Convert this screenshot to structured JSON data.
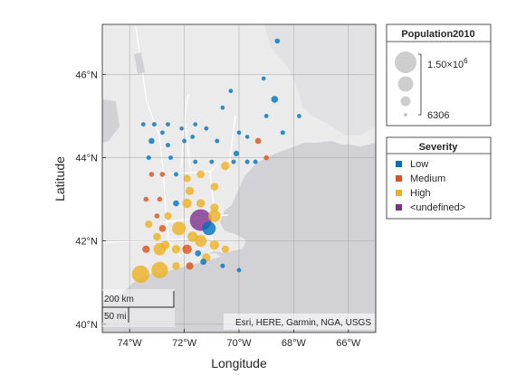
{
  "chart_data": {
    "type": "scatter",
    "subtype": "geographic bubble chart",
    "xlabel": "Longitude",
    "ylabel": "Latitude",
    "xlim": [
      -75,
      -65
    ],
    "ylim": [
      39.8,
      47.2
    ],
    "xticks": [
      -74,
      -72,
      -70,
      -68,
      -66
    ],
    "xtick_labels": [
      "74°W",
      "72°W",
      "70°W",
      "68°W",
      "66°W"
    ],
    "yticks": [
      40,
      42,
      44,
      46
    ],
    "ytick_labels": [
      "40°N",
      "42°N",
      "44°N",
      "46°N"
    ],
    "grid": true,
    "basemap_attribution": "Esri, HERE, Garmin, NGA, USGS",
    "scalebar": {
      "km_label": "200 km",
      "mi_label": "50 mi"
    },
    "size_legend": {
      "title": "Population2010",
      "max_label": "1.50×10",
      "max_label_exponent": "6",
      "min_label": "6306",
      "max_value": 1500000,
      "min_value": 6306
    },
    "color_legend": {
      "title": "Severity",
      "placement": "right",
      "categories": [
        {
          "name": "Low",
          "color": "#0072BD"
        },
        {
          "name": "Medium",
          "color": "#D95319"
        },
        {
          "name": "High",
          "color": "#EDB120"
        },
        {
          "name": "<undefined>",
          "color": "#7E2F8E"
        }
      ]
    },
    "points": [
      {
        "lon": -68.6,
        "lat": 46.8,
        "severity": "Low",
        "pop": 30000
      },
      {
        "lon": -69.1,
        "lat": 45.9,
        "severity": "Low",
        "pop": 12000
      },
      {
        "lon": -68.7,
        "lat": 45.4,
        "severity": "Low",
        "pop": 80000
      },
      {
        "lon": -70.3,
        "lat": 45.6,
        "severity": "Low",
        "pop": 15000
      },
      {
        "lon": -69.0,
        "lat": 45.0,
        "severity": "Low",
        "pop": 15000
      },
      {
        "lon": -67.8,
        "lat": 45.0,
        "severity": "Low",
        "pop": 15000
      },
      {
        "lon": -70.6,
        "lat": 45.2,
        "severity": "Low",
        "pop": 12000
      },
      {
        "lon": -68.4,
        "lat": 44.6,
        "severity": "Low",
        "pop": 20000
      },
      {
        "lon": -69.7,
        "lat": 44.5,
        "severity": "Low",
        "pop": 12000
      },
      {
        "lon": -70.0,
        "lat": 44.6,
        "severity": "Low",
        "pop": 15000
      },
      {
        "lon": -69.3,
        "lat": 44.4,
        "severity": "Medium",
        "pop": 60000
      },
      {
        "lon": -73.5,
        "lat": 44.8,
        "severity": "Low",
        "pop": 15000
      },
      {
        "lon": -73.1,
        "lat": 44.8,
        "severity": "Low",
        "pop": 20000
      },
      {
        "lon": -72.6,
        "lat": 44.8,
        "severity": "Low",
        "pop": 15000
      },
      {
        "lon": -72.1,
        "lat": 44.7,
        "severity": "Low",
        "pop": 12000
      },
      {
        "lon": -71.6,
        "lat": 44.8,
        "severity": "Low",
        "pop": 12000
      },
      {
        "lon": -71.2,
        "lat": 44.7,
        "severity": "Low",
        "pop": 15000
      },
      {
        "lon": -72.8,
        "lat": 44.6,
        "severity": "Low",
        "pop": 15000
      },
      {
        "lon": -71.7,
        "lat": 44.5,
        "severity": "Low",
        "pop": 15000
      },
      {
        "lon": -73.2,
        "lat": 44.4,
        "severity": "Low",
        "pop": 50000
      },
      {
        "lon": -72.6,
        "lat": 44.3,
        "severity": "Low",
        "pop": 20000
      },
      {
        "lon": -70.8,
        "lat": 44.4,
        "severity": "Low",
        "pop": 20000
      },
      {
        "lon": -72.0,
        "lat": 44.4,
        "severity": "Low",
        "pop": 15000
      },
      {
        "lon": -70.1,
        "lat": 44.1,
        "severity": "Low",
        "pop": 40000
      },
      {
        "lon": -73.3,
        "lat": 44.0,
        "severity": "Low",
        "pop": 20000
      },
      {
        "lon": -72.5,
        "lat": 44.0,
        "severity": "Low",
        "pop": 15000
      },
      {
        "lon": -71.6,
        "lat": 43.9,
        "severity": "Low",
        "pop": 15000
      },
      {
        "lon": -71.0,
        "lat": 43.9,
        "severity": "Low",
        "pop": 15000
      },
      {
        "lon": -69.7,
        "lat": 43.9,
        "severity": "Low",
        "pop": 20000
      },
      {
        "lon": -69.4,
        "lat": 43.9,
        "severity": "Low",
        "pop": 20000
      },
      {
        "lon": -69.0,
        "lat": 44.0,
        "severity": "Medium",
        "pop": 30000
      },
      {
        "lon": -73.2,
        "lat": 43.6,
        "severity": "Medium",
        "pop": 30000
      },
      {
        "lon": -72.8,
        "lat": 43.6,
        "severity": "Medium",
        "pop": 30000
      },
      {
        "lon": -72.3,
        "lat": 43.6,
        "severity": "Low",
        "pop": 20000
      },
      {
        "lon": -71.9,
        "lat": 43.5,
        "severity": "High",
        "pop": 100000
      },
      {
        "lon": -71.4,
        "lat": 43.6,
        "severity": "High",
        "pop": 120000
      },
      {
        "lon": -70.5,
        "lat": 43.8,
        "severity": "High",
        "pop": 150000
      },
      {
        "lon": -70.2,
        "lat": 43.9,
        "severity": "Low",
        "pop": 20000
      },
      {
        "lon": -73.4,
        "lat": 43.0,
        "severity": "Medium",
        "pop": 30000
      },
      {
        "lon": -72.9,
        "lat": 43.0,
        "severity": "Medium",
        "pop": 30000
      },
      {
        "lon": -72.3,
        "lat": 42.9,
        "severity": "Low",
        "pop": 50000
      },
      {
        "lon": -71.9,
        "lat": 42.9,
        "severity": "High",
        "pop": 200000
      },
      {
        "lon": -71.4,
        "lat": 42.9,
        "severity": "High",
        "pop": 150000
      },
      {
        "lon": -70.9,
        "lat": 43.3,
        "severity": "High",
        "pop": 120000
      },
      {
        "lon": -70.9,
        "lat": 42.8,
        "severity": "High",
        "pop": 130000
      },
      {
        "lon": -71.8,
        "lat": 43.2,
        "severity": "High",
        "pop": 150000
      },
      {
        "lon": -73.0,
        "lat": 42.6,
        "severity": "Medium",
        "pop": 30000
      },
      {
        "lon": -72.6,
        "lat": 42.6,
        "severity": "High",
        "pop": 100000
      },
      {
        "lon": -73.3,
        "lat": 42.4,
        "severity": "High",
        "pop": 100000
      },
      {
        "lon": -72.8,
        "lat": 42.3,
        "severity": "Medium",
        "pop": 80000
      },
      {
        "lon": -72.2,
        "lat": 42.3,
        "severity": "High",
        "pop": 500000
      },
      {
        "lon": -71.4,
        "lat": 42.5,
        "severity": "<undefined>",
        "pop": 1500000
      },
      {
        "lon": -70.9,
        "lat": 42.6,
        "severity": "High",
        "pop": 400000
      },
      {
        "lon": -71.1,
        "lat": 42.3,
        "severity": "Low",
        "pop": 500000
      },
      {
        "lon": -73.0,
        "lat": 42.1,
        "severity": "High",
        "pop": 120000
      },
      {
        "lon": -72.7,
        "lat": 41.9,
        "severity": "High",
        "pop": 150000
      },
      {
        "lon": -71.7,
        "lat": 42.1,
        "severity": "High",
        "pop": 250000
      },
      {
        "lon": -71.4,
        "lat": 42.0,
        "severity": "High",
        "pop": 350000
      },
      {
        "lon": -70.9,
        "lat": 41.9,
        "severity": "High",
        "pop": 200000
      },
      {
        "lon": -73.4,
        "lat": 41.8,
        "severity": "Medium",
        "pop": 100000
      },
      {
        "lon": -72.9,
        "lat": 41.8,
        "severity": "High",
        "pop": 400000
      },
      {
        "lon": -72.3,
        "lat": 41.8,
        "severity": "High",
        "pop": 150000
      },
      {
        "lon": -71.9,
        "lat": 41.8,
        "severity": "Medium",
        "pop": 200000
      },
      {
        "lon": -71.5,
        "lat": 41.7,
        "severity": "Low",
        "pop": 60000
      },
      {
        "lon": -71.2,
        "lat": 41.6,
        "severity": "High",
        "pop": 150000
      },
      {
        "lon": -70.5,
        "lat": 41.8,
        "severity": "High",
        "pop": 100000
      },
      {
        "lon": -73.6,
        "lat": 41.2,
        "severity": "High",
        "pop": 900000
      },
      {
        "lon": -72.9,
        "lat": 41.3,
        "severity": "High",
        "pop": 800000
      },
      {
        "lon": -72.3,
        "lat": 41.4,
        "severity": "High",
        "pop": 120000
      },
      {
        "lon": -71.8,
        "lat": 41.4,
        "severity": "Medium",
        "pop": 100000
      },
      {
        "lon": -71.3,
        "lat": 41.5,
        "severity": "Low",
        "pop": 60000
      },
      {
        "lon": -70.6,
        "lat": 41.4,
        "severity": "Low",
        "pop": 20000
      },
      {
        "lon": -70.0,
        "lat": 41.3,
        "severity": "Low",
        "pop": 15000
      }
    ]
  }
}
